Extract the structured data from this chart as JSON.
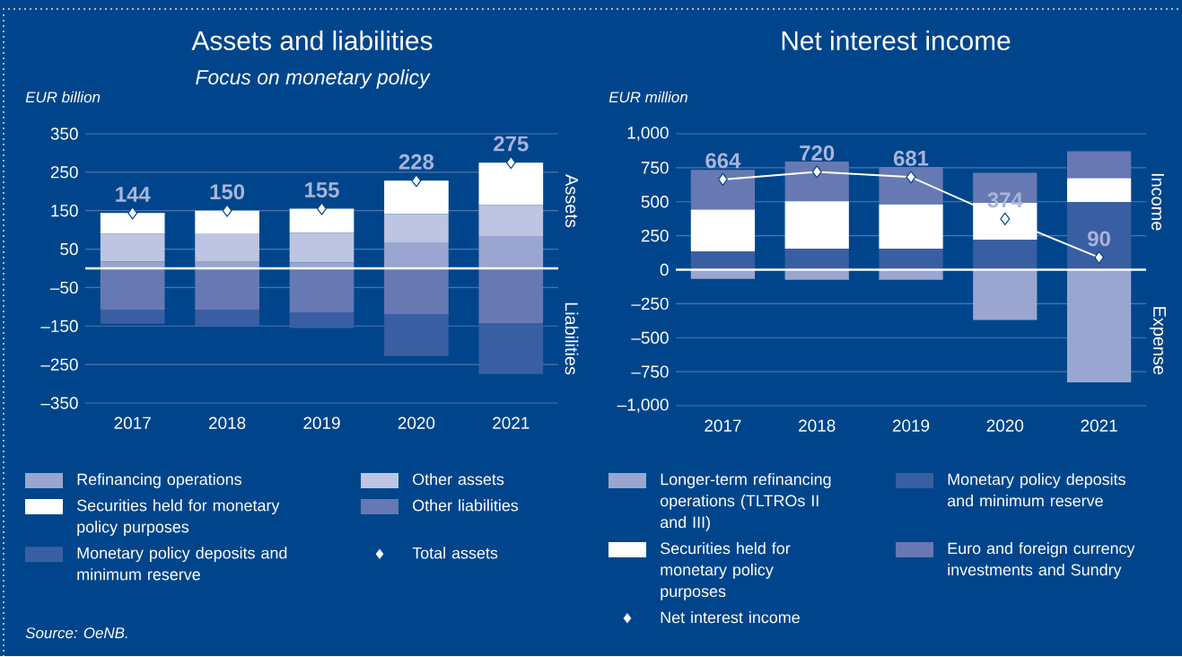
{
  "chart_data": [
    {
      "type": "bar",
      "title": "Assets and liabilities",
      "subtitle": "Focus on monetary policy",
      "ylabel": "EUR billion",
      "categories": [
        "2017",
        "2018",
        "2019",
        "2020",
        "2021"
      ],
      "stacked": true,
      "series": [
        {
          "name": "Refinancing operations",
          "color": "#9aa6d0",
          "values": [
            18,
            17,
            15,
            66,
            84
          ]
        },
        {
          "name": "Other assets",
          "color": "#bec5e2",
          "values": [
            72,
            72,
            78,
            76,
            81
          ]
        },
        {
          "name": "Securities held for monetary policy purposes",
          "color": "#ffffff",
          "values": [
            54,
            61,
            62,
            86,
            110
          ]
        },
        {
          "name": "Other liabilities",
          "color": "#6679b3",
          "values": [
            -108,
            -108,
            -115,
            -119,
            -143
          ]
        },
        {
          "name": "Monetary policy deposits and minimum reserve",
          "color": "#3a5ea2",
          "values": [
            -36,
            -42,
            -40,
            -109,
            -132
          ]
        },
        {
          "name": "Total assets",
          "type": "scatter",
          "color": "#ffffff",
          "marker": "diamond",
          "values": [
            144,
            150,
            155,
            228,
            275
          ],
          "value_labels": [
            "144",
            "150",
            "155",
            "228",
            "275"
          ]
        }
      ],
      "ylim": [
        -350,
        350
      ],
      "yticks": [
        {
          "value": -350,
          "label": "–350"
        },
        {
          "value": -250,
          "label": "–250"
        },
        {
          "value": -150,
          "label": "–150"
        },
        {
          "value": -50,
          "label": "–50"
        },
        50,
        150,
        250,
        350
      ],
      "grid": "y",
      "legend": "bottom",
      "ref_lines": [
        {
          "axis": "y",
          "value": 0,
          "color": "#ffffff"
        }
      ],
      "annotations": [
        "Assets",
        "Liabilities",
        "Source: OeNB."
      ]
    },
    {
      "type": "bar",
      "title": "Net interest income",
      "ylabel": "EUR million",
      "categories": [
        "2017",
        "2018",
        "2019",
        "2020",
        "2021"
      ],
      "stacked": true,
      "series": [
        {
          "name": "Longer-term refinancing operations (TLTROs II and III)",
          "color": "#9aa6d0",
          "values": [
            -67,
            -75,
            -75,
            -370,
            -828
          ]
        },
        {
          "name": "Monetary policy deposits and minimum reserve",
          "color": "#3a5ea2",
          "values": [
            134,
            153,
            153,
            220,
            496
          ]
        },
        {
          "name": "Securities held for monetary policy purposes",
          "color": "#ffffff",
          "values": [
            308,
            351,
            327,
            271,
            177
          ]
        },
        {
          "name": "Euro and foreign currency investments and Sundry",
          "color": "#6679b3",
          "values": [
            292,
            291,
            276,
            222,
            198
          ]
        },
        {
          "name": "Net interest income",
          "type": "line",
          "color": "#ffffff",
          "marker": "diamond",
          "values": [
            664,
            720,
            681,
            374,
            90
          ],
          "value_labels": [
            "664",
            "720",
            "681",
            "374",
            "90"
          ]
        }
      ],
      "ylim": [
        -1000,
        1000
      ],
      "yticks": [
        {
          "value": -1000,
          "label": "–1,000"
        },
        {
          "value": -750,
          "label": "–750"
        },
        {
          "value": -500,
          "label": "–500"
        },
        {
          "value": -250,
          "label": "–250"
        },
        0,
        250,
        500,
        750,
        {
          "value": 1000,
          "label": "1,000"
        }
      ],
      "grid": "y",
      "legend": "bottom",
      "ref_lines": [
        {
          "axis": "y",
          "value": 0,
          "color": "#ffffff"
        }
      ],
      "annotations": [
        "Income",
        "Expense"
      ]
    }
  ]
}
